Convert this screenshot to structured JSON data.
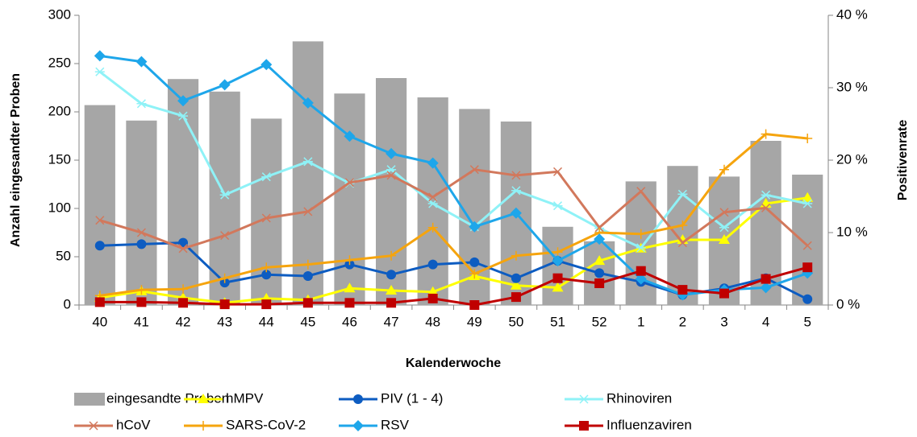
{
  "chart_data": {
    "type": "bar",
    "x_label": "Kalenderwoche",
    "y_label": "Anzahl eingesandter Proben",
    "y2_label": "Positivenrate",
    "categories": [
      "40",
      "41",
      "42",
      "43",
      "44",
      "45",
      "46",
      "47",
      "48",
      "49",
      "50",
      "51",
      "52",
      "1",
      "2",
      "3",
      "4",
      "5"
    ],
    "ylim": [
      0,
      300
    ],
    "yticks": [
      0,
      50,
      100,
      150,
      200,
      250,
      300
    ],
    "y2lim": [
      0,
      40
    ],
    "y2ticks": [
      {
        "value": 0,
        "label": "0 %"
      },
      {
        "value": 10,
        "label": "10 %"
      },
      {
        "value": 20,
        "label": "20 %"
      },
      {
        "value": 30,
        "label": "30 %"
      },
      {
        "value": 40,
        "label": "40 %"
      }
    ],
    "series": [
      {
        "name": "eingesandte Proben",
        "type": "bar",
        "color": "#a6a6a6",
        "values": [
          207,
          191,
          234,
          221,
          193,
          273,
          219,
          235,
          215,
          203,
          190,
          81,
          66,
          128,
          144,
          133,
          170,
          135
        ]
      },
      {
        "name": "hMPV",
        "type": "line",
        "axis": "y2",
        "marker": "triangle",
        "color": "#ffff00",
        "values": [
          1.0,
          1.9,
          1.0,
          0.3,
          0.9,
          0.7,
          2.3,
          2.0,
          1.8,
          4.0,
          2.7,
          2.4,
          6.1,
          7.8,
          9.0,
          9.0,
          14.0,
          14.8
        ]
      },
      {
        "name": "PIV (1 - 4)",
        "type": "line",
        "axis": "y2",
        "marker": "circle",
        "color": "#0d5cc1",
        "values": [
          8.2,
          8.4,
          8.6,
          3.1,
          4.2,
          4.0,
          5.6,
          4.2,
          5.6,
          5.9,
          3.7,
          6.1,
          4.4,
          3.2,
          1.4,
          2.3,
          3.7,
          0.8
        ]
      },
      {
        "name": "Rhinoviren",
        "type": "line",
        "axis": "y2",
        "marker": "star",
        "color": "#8ff2f7",
        "values": [
          32.2,
          27.8,
          26.1,
          15.2,
          17.7,
          19.8,
          16.8,
          18.7,
          14.0,
          10.8,
          15.8,
          13.7,
          10.6,
          7.9,
          15.3,
          10.7,
          15.2,
          14.0
        ]
      },
      {
        "name": "hCoV",
        "type": "line",
        "axis": "y2",
        "marker": "x",
        "color": "#d2785c",
        "values": [
          11.7,
          10.0,
          7.8,
          9.6,
          12.0,
          12.9,
          16.9,
          17.9,
          14.9,
          18.7,
          17.9,
          18.4,
          10.7,
          15.7,
          8.6,
          12.8,
          13.4,
          8.2
        ]
      },
      {
        "name": "SARS-CoV-2",
        "type": "line",
        "axis": "y2",
        "marker": "plus",
        "color": "#f5a40e",
        "values": [
          1.3,
          2.1,
          2.2,
          3.7,
          5.2,
          5.6,
          6.2,
          6.8,
          10.7,
          4.3,
          6.8,
          7.3,
          10.0,
          9.8,
          11.0,
          18.7,
          23.6,
          23.0
        ]
      },
      {
        "name": "RSV",
        "type": "line",
        "axis": "y2",
        "marker": "diamond",
        "color": "#1ea6ea",
        "values": [
          34.4,
          33.6,
          28.2,
          30.4,
          33.2,
          27.9,
          23.3,
          20.9,
          19.6,
          10.8,
          12.7,
          6.1,
          9.1,
          3.6,
          1.4,
          2.1,
          2.4,
          4.4
        ]
      },
      {
        "name": "Influenzaviren",
        "type": "line",
        "axis": "y2",
        "marker": "square",
        "color": "#c00000",
        "values": [
          0.4,
          0.4,
          0.3,
          0.1,
          0.1,
          0.3,
          0.3,
          0.3,
          0.9,
          0,
          1.1,
          3.7,
          3.0,
          4.7,
          2.1,
          1.6,
          3.6,
          5.2
        ]
      }
    ]
  }
}
